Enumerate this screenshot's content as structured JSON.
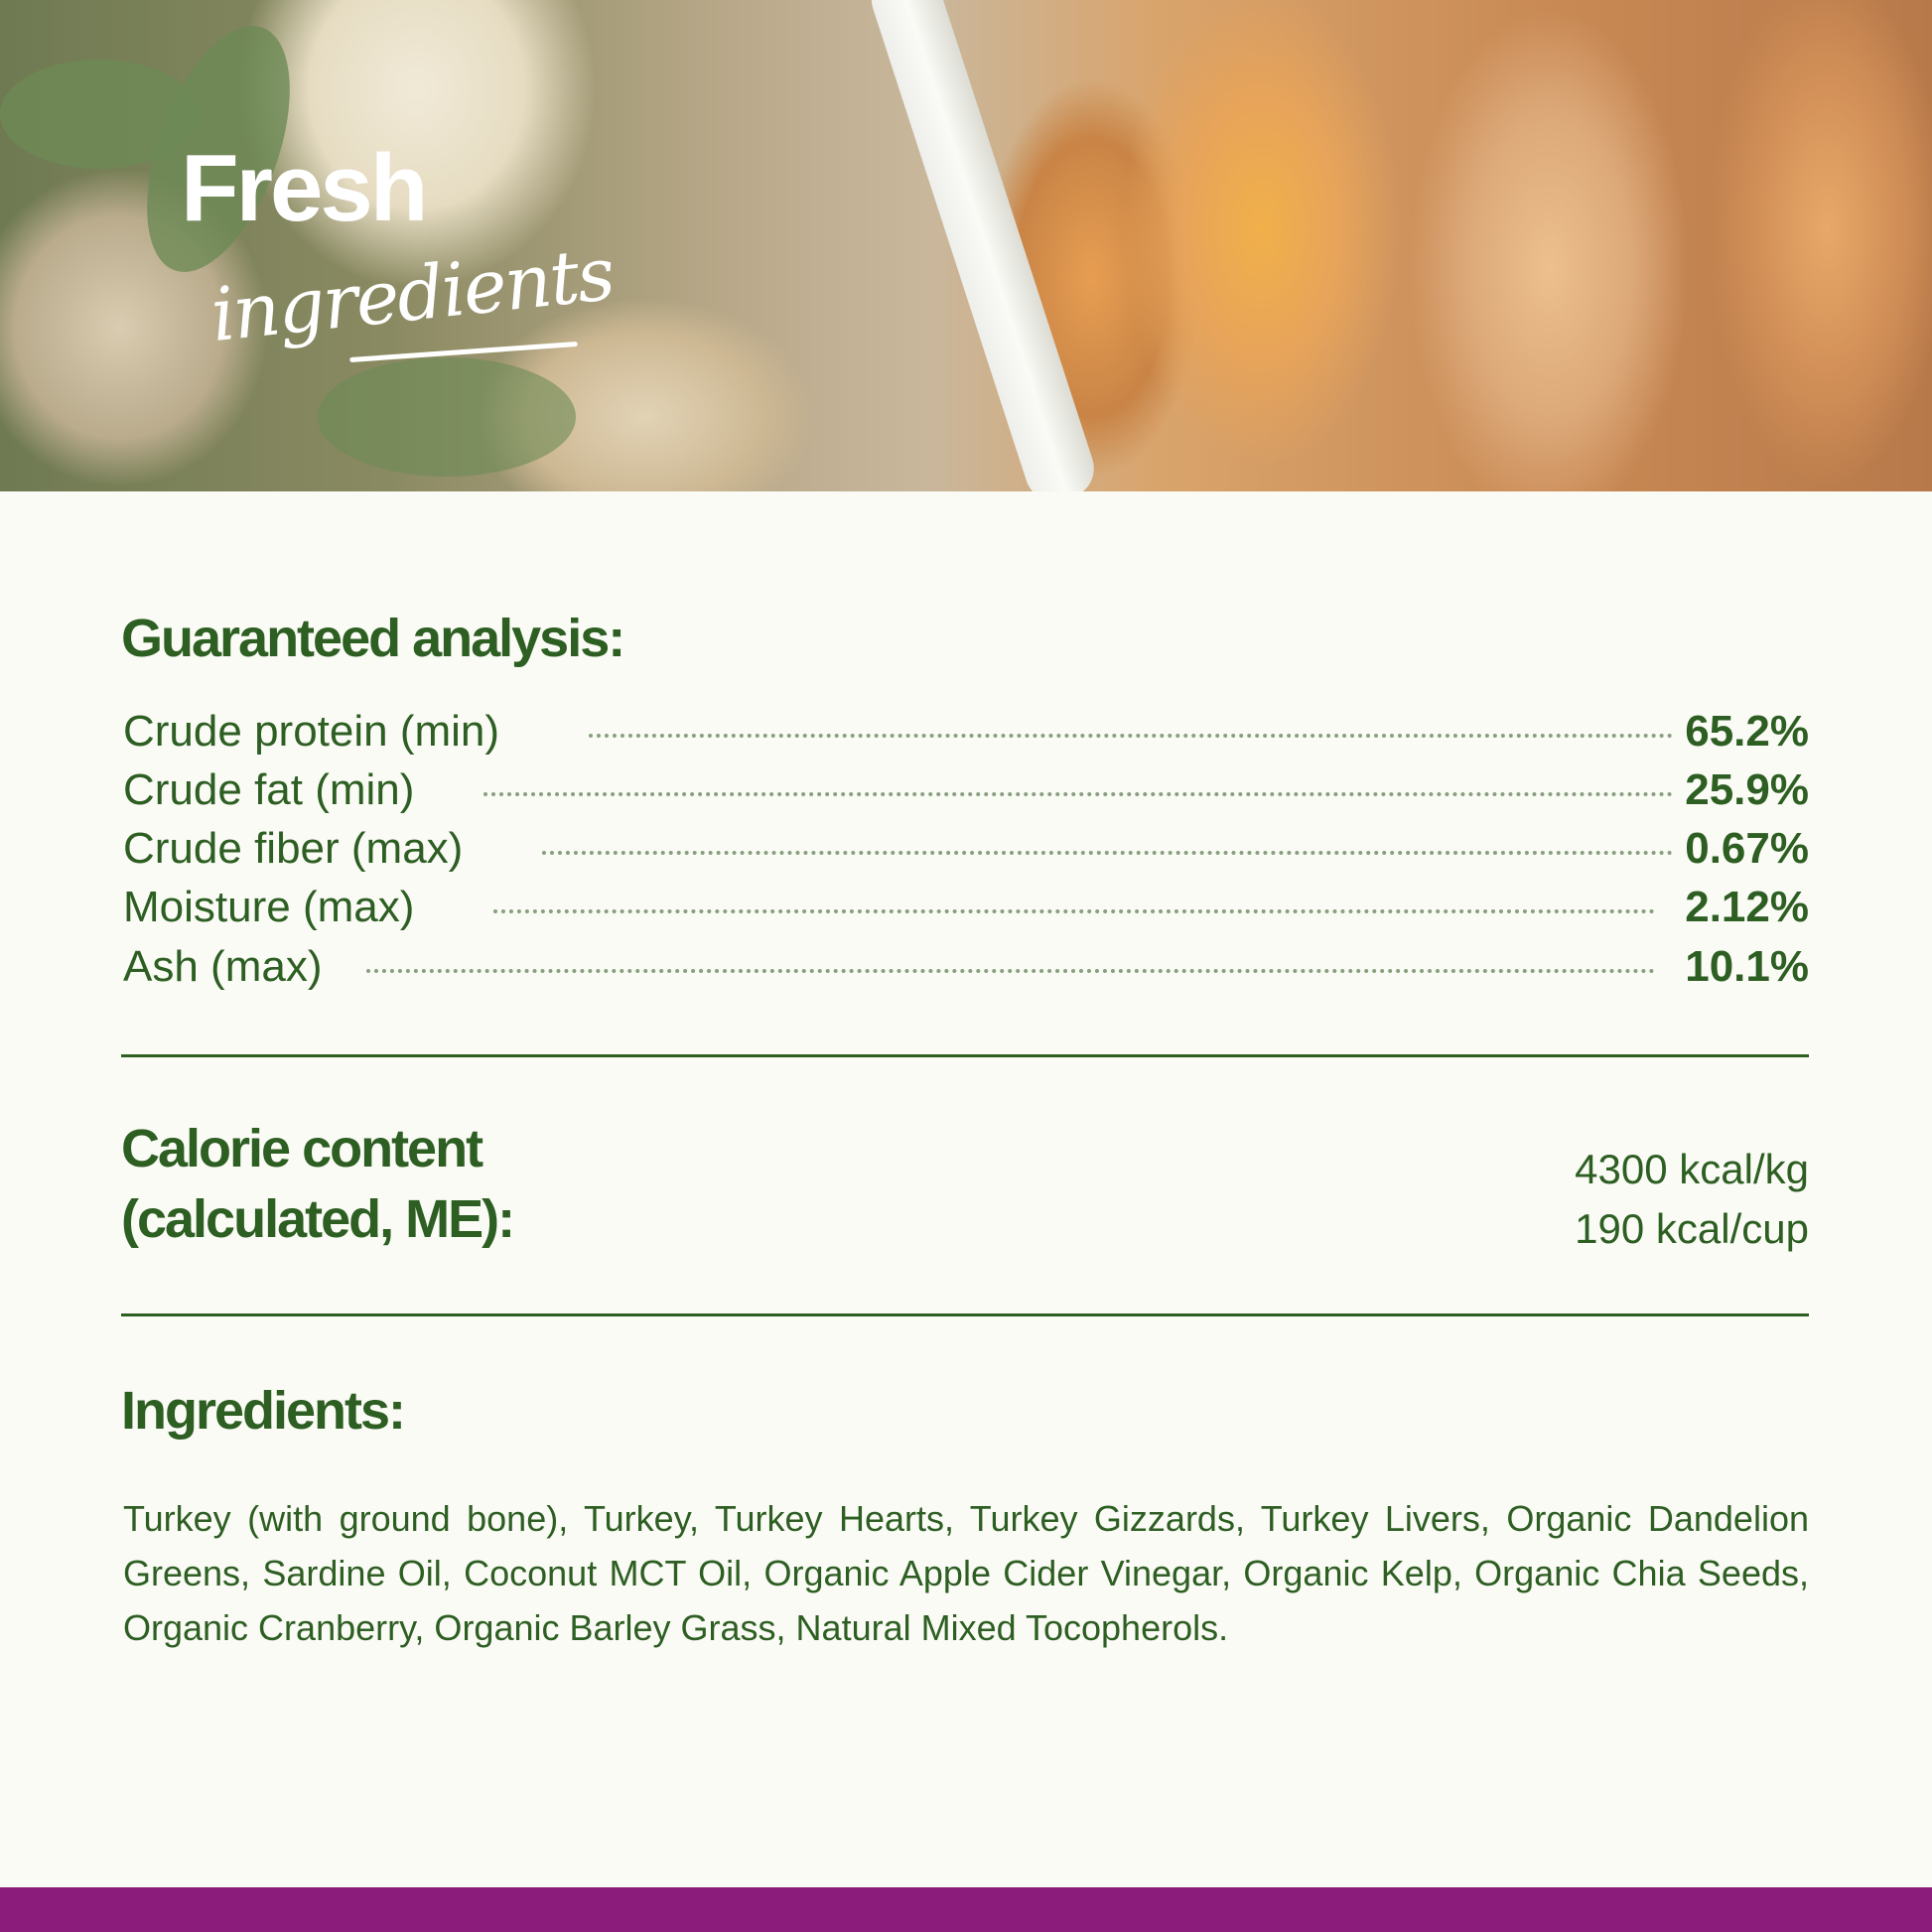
{
  "banner": {
    "logo_line1": "Fresh",
    "logo_line2": "ingredients"
  },
  "analysis": {
    "heading": "Guaranteed analysis:",
    "rows": [
      {
        "label": "Crude protein (min)",
        "value": "65.2%"
      },
      {
        "label": "Crude fat (min)",
        "value": "25.9%"
      },
      {
        "label": "Crude fiber (max)",
        "value": "0.67%"
      },
      {
        "label": "Moisture (max)",
        "value": "2.12%"
      },
      {
        "label": "Ash (max)",
        "value": "10.1%"
      }
    ]
  },
  "calorie": {
    "heading_line1": "Calorie content",
    "heading_line2": "(calculated, ME):",
    "values": [
      "4300 kcal/kg",
      "190 kcal/cup"
    ]
  },
  "ingredients": {
    "heading": "Ingredients:",
    "text": "Turkey (with ground bone), Turkey, Turkey Hearts, Turkey Gizzards, Turkey Livers, Organic Dandelion Greens, Sardine Oil, Coconut MCT Oil, Organic Apple Cider Vinegar, Organic Kelp, Organic Chia Seeds, Organic Cranberry, Organic Barley Grass, Natural Mixed Tocopherols."
  },
  "colors": {
    "text_green": "#2d5e22",
    "background": "#fbfbf6",
    "footer_purple": "#8b1c7c"
  }
}
